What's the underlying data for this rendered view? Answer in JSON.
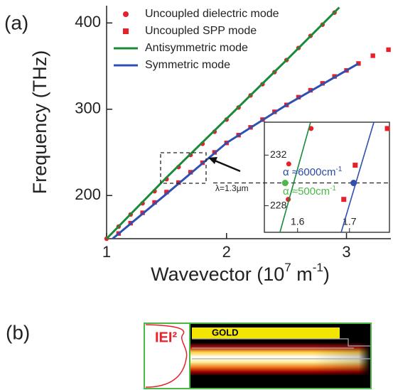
{
  "chart_data": [
    {
      "type": "line",
      "panel_label": "(a)",
      "y_label": "Frequency (THz)",
      "x_label": [
        "Wavevector (10",
        "7",
        " m",
        "-1",
        ")"
      ],
      "xlim": [
        1,
        3.37
      ],
      "ylim": [
        150,
        420
      ],
      "xticks": [
        1,
        2,
        3
      ],
      "yticks": [
        200,
        300,
        400
      ],
      "legend": "upper left",
      "annotation": "λ=1.3μm",
      "series": [
        {
          "name": "Uncoupled dielectric mode",
          "color": "#e8202a",
          "marker": "circle",
          "x": [
            1.0,
            1.1,
            1.2,
            1.3,
            1.4,
            1.5,
            1.6,
            1.7,
            1.8,
            1.9,
            2.0,
            2.1,
            2.2,
            2.3,
            2.4,
            2.5,
            2.6,
            2.7,
            2.8,
            2.9
          ],
          "values": [
            150,
            164,
            178,
            191,
            205,
            219,
            233,
            247,
            260,
            274,
            288,
            302,
            316,
            329,
            343,
            357,
            371,
            385,
            398,
            412
          ]
        },
        {
          "name": "Uncoupled SPP mode",
          "color": "#e8202a",
          "marker": "square",
          "x": [
            1.1,
            1.2,
            1.3,
            1.4,
            1.5,
            1.6,
            1.7,
            1.8,
            1.9,
            2.0,
            2.1,
            2.2,
            2.3,
            2.4,
            2.5,
            2.6,
            2.7,
            2.8,
            2.9,
            3.0,
            3.1,
            3.22,
            3.35
          ],
          "values": [
            156,
            168,
            180,
            192,
            204,
            215,
            227,
            238,
            250,
            261,
            270,
            279,
            288,
            297,
            305,
            314,
            322,
            330,
            338,
            345,
            353,
            362,
            369
          ]
        },
        {
          "name": "Antisymmetric mode",
          "color": "#1a8a3a",
          "marker": "none",
          "x": [
            1,
            1.5,
            2,
            2.5,
            2.94
          ],
          "values": [
            150,
            221,
            289,
            357,
            418
          ]
        },
        {
          "name": "Symmetric mode",
          "color": "#3050b0",
          "marker": "none",
          "x": [
            1.05,
            1.5,
            2,
            2.5,
            3.1
          ],
          "values": [
            150,
            202,
            261,
            305,
            353
          ]
        }
      ]
    },
    {
      "type": "line",
      "xlim": [
        1.536,
        1.777
      ],
      "ylim": [
        225.9,
        234.6
      ],
      "xticks": [
        1.6,
        1.7
      ],
      "yticks": [
        228,
        232
      ],
      "hline": 229.8,
      "series": [
        {
          "color": "#e8202a",
          "marker": "circle",
          "x": [
            1.582,
            1.583,
            1.626
          ],
          "values": [
            228.5,
            231.3,
            234.1
          ]
        },
        {
          "color": "#e8202a",
          "marker": "square",
          "x": [
            1.689,
            1.711,
            1.773
          ],
          "values": [
            228.5,
            231.2,
            234.1
          ]
        },
        {
          "color": "#1a8a3a",
          "marker": "none",
          "x": [
            1.566,
            1.625
          ],
          "values": [
            225.9,
            234.6
          ]
        },
        {
          "color": "#3050b0",
          "marker": "none",
          "x": [
            1.684,
            1.747
          ],
          "values": [
            225.9,
            234.6
          ]
        }
      ],
      "points": [
        {
          "color": "#4cb848",
          "x": 1.576,
          "value": 229.8
        },
        {
          "color": "#3050b0",
          "x": 1.708,
          "value": 229.8
        }
      ],
      "annotations": [
        {
          "text": [
            "α ≈6000cm",
            "-1"
          ],
          "color": "#2a4aa8"
        },
        {
          "text": [
            "α ≈500cm",
            "-1"
          ],
          "color": "#4cb848"
        }
      ]
    }
  ],
  "image_panel": {
    "label": "(b)",
    "field_label": "IEI²",
    "gold_label": "GOLD"
  }
}
